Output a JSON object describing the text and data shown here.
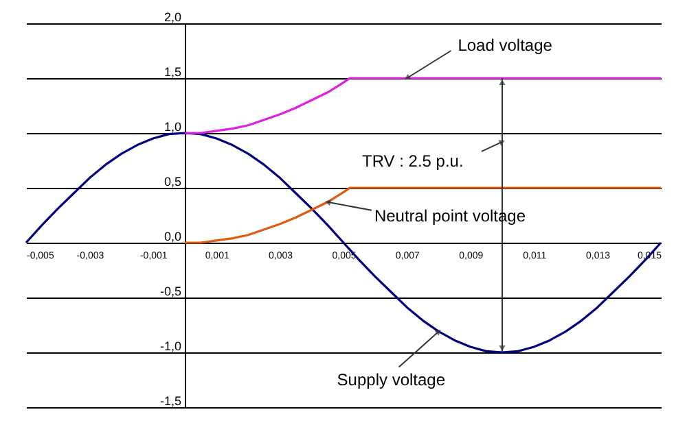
{
  "chart_data": {
    "type": "line",
    "x": [
      -0.005,
      -0.0045,
      -0.004,
      -0.0035,
      -0.003,
      -0.0025,
      -0.002,
      -0.0015,
      -0.001,
      -0.0005,
      0,
      0.0005,
      0.001,
      0.0015,
      0.002,
      0.0025,
      0.003,
      0.0035,
      0.004,
      0.0045,
      0.005,
      0.0055,
      0.006,
      0.0065,
      0.007,
      0.0075,
      0.008,
      0.0085,
      0.009,
      0.0095,
      0.01,
      0.0105,
      0.011,
      0.0115,
      0.012,
      0.0125,
      0.013,
      0.0135,
      0.014,
      0.0145,
      0.015
    ],
    "series": [
      {
        "color": "#000080",
        "values": [
          0,
          0.16,
          0.31,
          0.45,
          0.59,
          0.71,
          0.81,
          0.89,
          0.95,
          0.99,
          1,
          0.99,
          0.95,
          0.89,
          0.81,
          0.71,
          0.59,
          0.45,
          0.31,
          0.16,
          0,
          -0.16,
          -0.31,
          -0.45,
          -0.59,
          -0.71,
          -0.81,
          -0.89,
          -0.95,
          -0.99,
          -1,
          -0.99,
          -0.95,
          -0.89,
          -0.81,
          -0.71,
          -0.59,
          -0.45,
          -0.31,
          -0.16,
          0
        ]
      },
      {
        "color": "#e020e0",
        "x": [
          0,
          0.0005,
          0.001,
          0.0015,
          0.002,
          0.0025,
          0.003,
          0.0035,
          0.004,
          0.0045,
          0.005,
          0.0052,
          0.015
        ],
        "values": [
          1,
          1,
          1.02,
          1.04,
          1.07,
          1.12,
          1.17,
          1.23,
          1.3,
          1.37,
          1.46,
          1.5,
          1.5
        ]
      },
      {
        "color": "#e05a10",
        "x": [
          0,
          0.0005,
          0.001,
          0.0015,
          0.002,
          0.0025,
          0.003,
          0.0035,
          0.004,
          0.0045,
          0.005,
          0.0052,
          0.015
        ],
        "values": [
          0,
          0,
          0.02,
          0.04,
          0.07,
          0.12,
          0.17,
          0.23,
          0.3,
          0.37,
          0.46,
          0.5,
          0.5
        ]
      }
    ],
    "xlim": [
      -0.005,
      0.015
    ],
    "xticks": [
      {
        "value": -0.005,
        "label": "-0,005"
      },
      {
        "value": -0.003,
        "label": "-0,003"
      },
      {
        "value": -0.001,
        "label": "-0,001"
      },
      {
        "value": 0.001,
        "label": "0,001"
      },
      {
        "value": 0.003,
        "label": "0,003"
      },
      {
        "value": 0.005,
        "label": "0,005"
      },
      {
        "value": 0.007,
        "label": "0,007"
      },
      {
        "value": 0.009,
        "label": "0,009"
      },
      {
        "value": 0.011,
        "label": "0,011"
      },
      {
        "value": 0.013,
        "label": "0,013"
      },
      {
        "value": 0.015,
        "label": "0,015"
      }
    ],
    "ylim": [
      -1.5,
      2
    ],
    "yticks": [
      {
        "value": -1.5,
        "label": "-1,5"
      },
      {
        "value": -1,
        "label": "-1,0"
      },
      {
        "value": -0.5,
        "label": "-0,5"
      },
      {
        "value": 0,
        "label": "0,0"
      },
      {
        "value": 0.5,
        "label": "0,5"
      },
      {
        "value": 1,
        "label": "1,0"
      },
      {
        "value": 1.5,
        "label": "1,5"
      },
      {
        "value": 2,
        "label": "2,0"
      }
    ],
    "grid": "y",
    "marker": "none",
    "line_style": "solid",
    "annotations": [
      {
        "text": "Load voltage",
        "x": 0.007,
        "y": 1.5
      },
      {
        "text": "TRV : 2.5 p.u.",
        "x": 0.01,
        "y": 0.92
      },
      {
        "text": "Neutral point voltage",
        "x": 0.0045,
        "y": 0.37
      },
      {
        "text": "Supply voltage",
        "x": 0.008,
        "y": -0.81
      }
    ]
  }
}
